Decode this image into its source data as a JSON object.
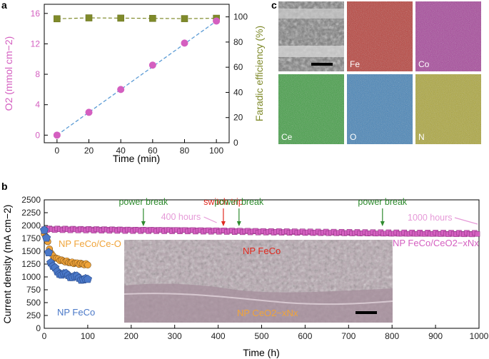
{
  "panels": {
    "a": "a",
    "b": "b",
    "c": "c"
  },
  "colors": {
    "pink": "#d45fc0",
    "olive": "#7f8a2a",
    "blue": "#4a78c8",
    "orange": "#f0a43a",
    "green": "#2e8b2e",
    "red": "#e0281e",
    "lightpink": "#e69ad8"
  },
  "chart_data": [
    {
      "id": "a",
      "type": "scatter",
      "xlabel": "Time (min)",
      "ylabel_left": "O2 (mmol cm−2)",
      "ylabel_right": "Faradic efficiency (%)",
      "xlim": [
        -8,
        108
      ],
      "ylim_left": [
        -1.0,
        17.2
      ],
      "ylim_right": [
        0,
        110
      ],
      "x_ticks": [
        0,
        20,
        40,
        60,
        80,
        100
      ],
      "y_ticks_left": [
        0,
        4,
        8,
        12,
        16
      ],
      "y_ticks_right": [
        0,
        20,
        40,
        60,
        80,
        100
      ],
      "series": [
        {
          "axis": "left",
          "marker": "circle",
          "color": "#d45fc0",
          "x": [
            0,
            20,
            40,
            60,
            80,
            100
          ],
          "y": [
            0,
            3.0,
            6.0,
            9.2,
            12.1,
            15.0
          ]
        },
        {
          "axis": "right",
          "marker": "square",
          "color": "#7f8a2a",
          "x": [
            0,
            20,
            40,
            60,
            80,
            100
          ],
          "y": [
            98.5,
            99.2,
            99.0,
            98.8,
            98.6,
            98.9
          ]
        }
      ],
      "fit_line": {
        "x": [
          0,
          100
        ],
        "y": [
          0,
          15.0
        ]
      }
    },
    {
      "id": "b",
      "type": "scatter",
      "xlabel": "Time (h)",
      "ylabel": "Current density (mA cm−2)",
      "xlim": [
        0,
        1000
      ],
      "ylim": [
        0,
        2500
      ],
      "x_ticks": [
        0,
        100,
        200,
        300,
        400,
        500,
        600,
        700,
        800,
        900,
        1000
      ],
      "y_ticks": [
        0,
        250,
        500,
        750,
        1000,
        1250,
        1500,
        1750,
        2000,
        2250,
        2500
      ],
      "series": [
        {
          "name": "NP FeCo/CeO2−xNx",
          "color": "#d45fc0",
          "marker": "square",
          "x": [
            0,
            100,
            200,
            300,
            400,
            500,
            600,
            700,
            800,
            900,
            1000
          ],
          "y": [
            1930,
            1920,
            1910,
            1905,
            1895,
            1880,
            1870,
            1860,
            1850,
            1845,
            1840
          ]
        },
        {
          "name": "NP FeCo/Ce-O",
          "color": "#f0a43a",
          "marker": "circle",
          "x": [
            0,
            5,
            10,
            15,
            20,
            30,
            40,
            50,
            60,
            70,
            80,
            90,
            100
          ],
          "y": [
            1840,
            1780,
            1600,
            1480,
            1400,
            1350,
            1320,
            1300,
            1280,
            1270,
            1260,
            1250,
            1240
          ]
        },
        {
          "name": "NP FeCo",
          "color": "#4a78c8",
          "marker": "pentagon",
          "x": [
            0,
            5,
            10,
            15,
            20,
            25,
            30,
            40,
            50,
            60,
            70,
            80,
            90,
            100
          ],
          "y": [
            1880,
            1750,
            1500,
            1300,
            1200,
            1150,
            1100,
            1060,
            1040,
            1020,
            1000,
            980,
            960,
            930
          ]
        }
      ],
      "annotations": [
        {
          "text": "power break",
          "x": 228,
          "color": "#2e8b2e"
        },
        {
          "text": "switch trip",
          "x": 412,
          "color": "#e0281e"
        },
        {
          "text": "power break",
          "x": 448,
          "color": "#2e8b2e"
        },
        {
          "text": "power break",
          "x": 778,
          "color": "#2e8b2e"
        },
        {
          "text": "400 hours",
          "x": 400,
          "color": "#e69ad8"
        },
        {
          "text": "1000 hours",
          "x": 1000,
          "color": "#e69ad8"
        }
      ],
      "inset_labels": [
        "NP FeCo",
        "NP CeO2−xNx"
      ]
    }
  ],
  "eds_maps": [
    {
      "label": "",
      "color": "#9a9a9a"
    },
    {
      "label": "Fe",
      "color": "#d8322a"
    },
    {
      "label": "Co",
      "color": "#c13bb0"
    },
    {
      "label": "Ce",
      "color": "#36b53a"
    },
    {
      "label": "O",
      "color": "#3a8fd8"
    },
    {
      "label": "N",
      "color": "#c9c12e"
    }
  ]
}
